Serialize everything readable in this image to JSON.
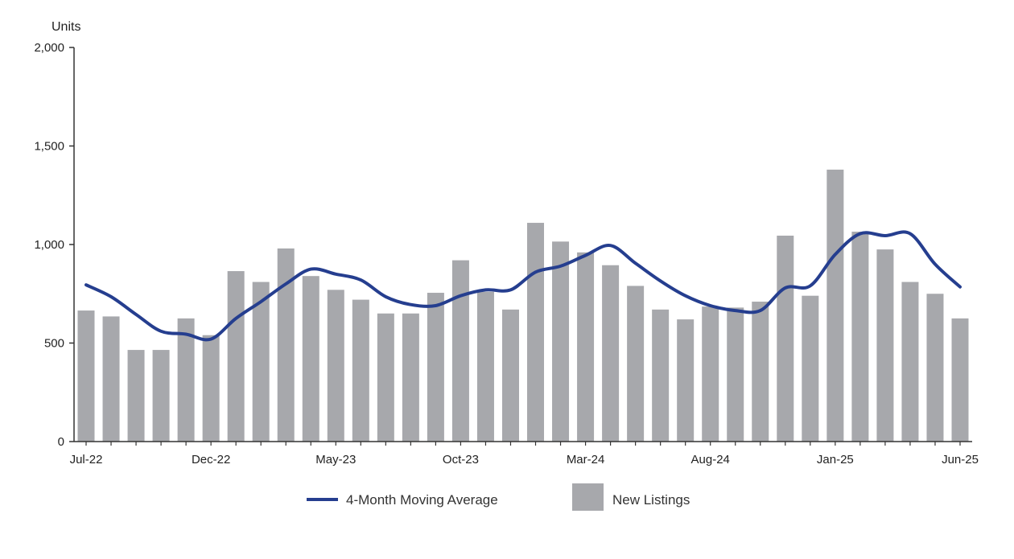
{
  "chart_data": {
    "type": "bar",
    "ylabel": "Units",
    "ylim": [
      0,
      2000
    ],
    "yticks": [
      "0",
      "500",
      "1,000",
      "1,500",
      "2,000"
    ],
    "ytick_values": [
      0,
      500,
      1000,
      1500,
      2000
    ],
    "x_tick_labels": [
      {
        "label": "Jul-22",
        "index": 0
      },
      {
        "label": "Dec-22",
        "index": 5
      },
      {
        "label": "May-23",
        "index": 10
      },
      {
        "label": "Oct-23",
        "index": 15
      },
      {
        "label": "Mar-24",
        "index": 20
      },
      {
        "label": "Aug-24",
        "index": 25
      },
      {
        "label": "Jan-25",
        "index": 30
      },
      {
        "label": "Jun-25",
        "index": 35
      }
    ],
    "categories": [
      "Jul-22",
      "Aug-22",
      "Sep-22",
      "Oct-22",
      "Nov-22",
      "Dec-22",
      "Jan-23",
      "Feb-23",
      "Mar-23",
      "Apr-23",
      "May-23",
      "Jun-23",
      "Jul-23",
      "Aug-23",
      "Sep-23",
      "Oct-23",
      "Nov-23",
      "Dec-23",
      "Jan-24",
      "Feb-24",
      "Mar-24",
      "Apr-24",
      "May-24",
      "Jun-24",
      "Jul-24",
      "Aug-24",
      "Sep-24",
      "Oct-24",
      "Nov-24",
      "Dec-24",
      "Jan-25",
      "Feb-25",
      "Mar-25",
      "Apr-25",
      "May-25",
      "Jun-25"
    ],
    "series": [
      {
        "name": "New Listings",
        "kind": "bar",
        "color": "#a7a8ac",
        "values": [
          665,
          635,
          465,
          465,
          625,
          540,
          865,
          810,
          980,
          840,
          770,
          720,
          650,
          650,
          755,
          920,
          760,
          670,
          1110,
          1015,
          960,
          895,
          790,
          670,
          620,
          685,
          680,
          710,
          1045,
          740,
          1380,
          1065,
          975,
          810,
          750,
          625
        ]
      },
      {
        "name": "4-Month Moving Average",
        "kind": "line",
        "color": "#253e8f",
        "values": [
          795,
          735,
          645,
          560,
          545,
          520,
          625,
          710,
          800,
          875,
          850,
          820,
          735,
          695,
          690,
          740,
          770,
          770,
          860,
          890,
          945,
          995,
          905,
          815,
          740,
          690,
          665,
          665,
          780,
          790,
          950,
          1055,
          1045,
          1055,
          900,
          785
        ]
      }
    ],
    "legend": [
      {
        "label": "4-Month Moving Average",
        "kind": "line",
        "color": "#253e8f"
      },
      {
        "label": "New Listings",
        "kind": "bar",
        "color": "#a7a8ac"
      }
    ],
    "legend_position": "bottom",
    "grid": false
  }
}
